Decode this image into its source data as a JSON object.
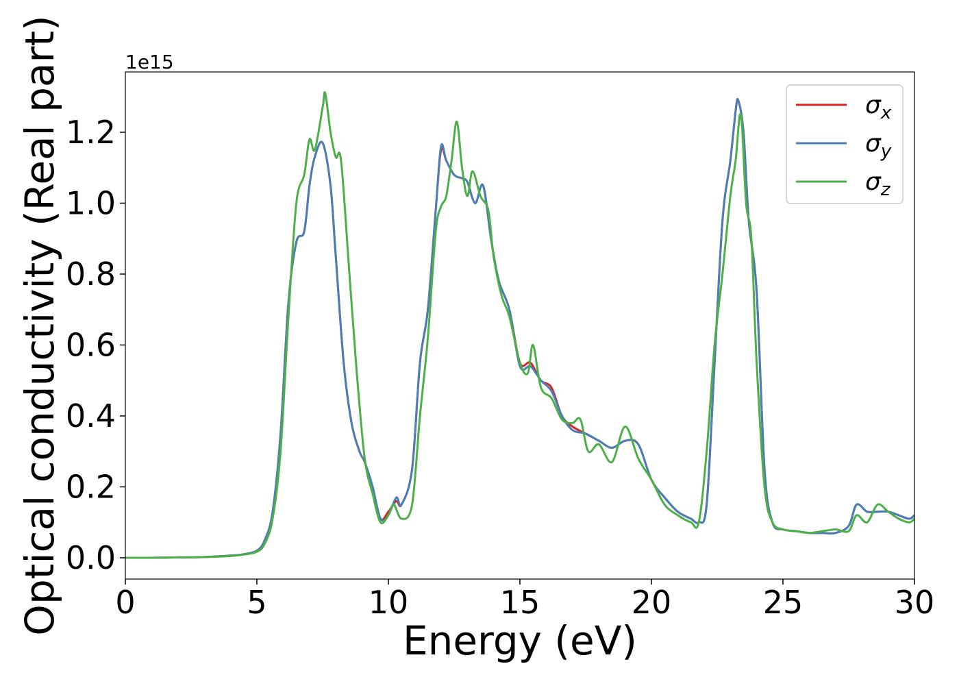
{
  "chart_data": {
    "type": "line",
    "title": "",
    "xlabel": "Energy (eV)",
    "ylabel": "Optical conductivity (Real part)",
    "y_offset_label": "1e15",
    "xlim": [
      0,
      30
    ],
    "ylim": [
      -0.06,
      1.37
    ],
    "xticks": [
      0,
      5,
      10,
      15,
      20,
      25,
      30
    ],
    "yticks": [
      0.0,
      0.2,
      0.4,
      0.6,
      0.8,
      1.0,
      1.2
    ],
    "xtick_labels": [
      "0",
      "5",
      "10",
      "15",
      "20",
      "25",
      "30"
    ],
    "ytick_labels": [
      "0.0",
      "0.2",
      "0.4",
      "0.6",
      "0.8",
      "1.0",
      "1.2"
    ],
    "grid": false,
    "legend_position": "top-right",
    "colors": {
      "sigma_x": "#d62728",
      "sigma_y": "#4a7fb5",
      "sigma_z": "#4daf4a"
    },
    "series": [
      {
        "key": "sigma_x",
        "name": "σ",
        "subscript": "x",
        "color": "#d62728",
        "x": [
          0,
          1,
          2,
          3,
          4,
          4.5,
          5,
          5.3,
          5.6,
          5.9,
          6.2,
          6.5,
          6.8,
          7.0,
          7.2,
          7.5,
          7.8,
          8.0,
          8.3,
          8.6,
          8.9,
          9.1,
          9.4,
          9.7,
          10.0,
          10.3,
          10.5,
          10.9,
          11.2,
          11.5,
          11.8,
          12.0,
          12.2,
          12.5,
          12.8,
          13.0,
          13.3,
          13.6,
          13.9,
          14.2,
          14.6,
          15.0,
          15.4,
          15.8,
          16.2,
          16.6,
          17.0,
          17.5,
          18.0,
          18.5,
          19.0,
          19.5,
          20.0,
          20.5,
          21.0,
          21.5,
          21.8,
          22.1,
          22.4,
          22.7,
          23.0,
          23.2,
          23.3,
          23.5,
          23.7,
          24.0,
          24.3,
          24.6,
          25.0,
          25.5,
          26.0,
          26.5,
          27.0,
          27.5,
          27.8,
          28.2,
          28.6,
          29.0,
          29.4,
          29.8,
          30.0
        ],
        "values": [
          0.0,
          0.0,
          0.001,
          0.002,
          0.006,
          0.01,
          0.02,
          0.05,
          0.13,
          0.35,
          0.72,
          0.89,
          0.92,
          1.05,
          1.13,
          1.17,
          1.05,
          0.85,
          0.55,
          0.38,
          0.3,
          0.27,
          0.2,
          0.11,
          0.13,
          0.16,
          0.15,
          0.25,
          0.55,
          0.7,
          0.98,
          1.15,
          1.12,
          1.08,
          1.07,
          1.06,
          1.0,
          1.05,
          0.9,
          0.78,
          0.7,
          0.55,
          0.55,
          0.5,
          0.48,
          0.4,
          0.37,
          0.35,
          0.33,
          0.31,
          0.33,
          0.32,
          0.22,
          0.17,
          0.13,
          0.11,
          0.1,
          0.15,
          0.55,
          0.95,
          1.12,
          1.26,
          1.29,
          1.2,
          0.95,
          0.75,
          0.25,
          0.1,
          0.08,
          0.075,
          0.07,
          0.07,
          0.07,
          0.09,
          0.15,
          0.13,
          0.13,
          0.13,
          0.12,
          0.11,
          0.12
        ]
      },
      {
        "key": "sigma_y",
        "name": "σ",
        "subscript": "y",
        "color": "#4a7fb5",
        "x": [
          0,
          1,
          2,
          3,
          4,
          4.5,
          5,
          5.3,
          5.6,
          5.9,
          6.2,
          6.5,
          6.8,
          7.0,
          7.2,
          7.5,
          7.8,
          8.0,
          8.3,
          8.6,
          8.9,
          9.1,
          9.4,
          9.7,
          10.0,
          10.3,
          10.5,
          10.9,
          11.2,
          11.5,
          11.8,
          12.0,
          12.2,
          12.5,
          12.8,
          13.0,
          13.3,
          13.6,
          13.9,
          14.2,
          14.6,
          15.0,
          15.4,
          15.8,
          16.2,
          16.6,
          17.0,
          17.5,
          18.0,
          18.5,
          19.0,
          19.5,
          20.0,
          20.5,
          21.0,
          21.5,
          21.8,
          22.1,
          22.4,
          22.7,
          23.0,
          23.2,
          23.3,
          23.5,
          23.7,
          24.0,
          24.3,
          24.6,
          25.0,
          25.5,
          26.0,
          26.5,
          27.0,
          27.5,
          27.8,
          28.2,
          28.6,
          29.0,
          29.4,
          29.8,
          30.0
        ],
        "values": [
          0.0,
          0.0,
          0.001,
          0.002,
          0.006,
          0.01,
          0.02,
          0.05,
          0.13,
          0.35,
          0.72,
          0.89,
          0.92,
          1.05,
          1.13,
          1.17,
          1.05,
          0.85,
          0.55,
          0.38,
          0.3,
          0.27,
          0.2,
          0.11,
          0.12,
          0.17,
          0.15,
          0.25,
          0.55,
          0.7,
          0.98,
          1.16,
          1.12,
          1.08,
          1.07,
          1.06,
          1.0,
          1.05,
          0.9,
          0.78,
          0.7,
          0.54,
          0.54,
          0.5,
          0.47,
          0.4,
          0.36,
          0.35,
          0.33,
          0.31,
          0.33,
          0.32,
          0.22,
          0.17,
          0.13,
          0.11,
          0.1,
          0.15,
          0.55,
          0.95,
          1.12,
          1.26,
          1.29,
          1.2,
          0.95,
          0.75,
          0.25,
          0.1,
          0.08,
          0.075,
          0.07,
          0.07,
          0.07,
          0.09,
          0.15,
          0.13,
          0.13,
          0.13,
          0.12,
          0.11,
          0.12
        ]
      },
      {
        "key": "sigma_z",
        "name": "σ",
        "subscript": "z",
        "color": "#4daf4a",
        "x": [
          0,
          1,
          2,
          3,
          4,
          4.5,
          5,
          5.3,
          5.6,
          5.9,
          6.2,
          6.5,
          6.8,
          7.0,
          7.2,
          7.5,
          7.6,
          7.8,
          8.0,
          8.2,
          8.5,
          8.8,
          9.1,
          9.4,
          9.7,
          10.0,
          10.2,
          10.5,
          10.9,
          11.2,
          11.5,
          11.8,
          12.0,
          12.2,
          12.4,
          12.6,
          12.8,
          13.0,
          13.2,
          13.5,
          13.8,
          14.0,
          14.3,
          14.6,
          15.0,
          15.3,
          15.5,
          15.8,
          16.2,
          16.6,
          17.0,
          17.3,
          17.6,
          18.0,
          18.5,
          19.0,
          19.5,
          20.0,
          20.5,
          21.0,
          21.5,
          21.8,
          22.1,
          22.4,
          22.7,
          23.0,
          23.2,
          23.4,
          23.6,
          23.8,
          24.0,
          24.3,
          24.6,
          25.0,
          25.5,
          26.0,
          26.5,
          27.0,
          27.5,
          27.8,
          28.2,
          28.6,
          29.0,
          29.4,
          29.8,
          30.0
        ],
        "values": [
          0.0,
          0.0,
          0.001,
          0.002,
          0.005,
          0.009,
          0.017,
          0.04,
          0.11,
          0.3,
          0.68,
          1.0,
          1.08,
          1.18,
          1.15,
          1.27,
          1.31,
          1.2,
          1.13,
          1.12,
          0.82,
          0.52,
          0.28,
          0.18,
          0.1,
          0.12,
          0.15,
          0.11,
          0.15,
          0.4,
          0.62,
          0.92,
          0.99,
          1.02,
          1.12,
          1.23,
          1.1,
          1.02,
          1.09,
          1.02,
          0.98,
          0.85,
          0.74,
          0.68,
          0.55,
          0.52,
          0.6,
          0.48,
          0.45,
          0.39,
          0.38,
          0.39,
          0.3,
          0.32,
          0.27,
          0.37,
          0.28,
          0.22,
          0.15,
          0.12,
          0.1,
          0.1,
          0.3,
          0.6,
          0.8,
          1.02,
          1.12,
          1.25,
          1.0,
          0.9,
          0.55,
          0.2,
          0.1,
          0.08,
          0.075,
          0.07,
          0.075,
          0.08,
          0.075,
          0.12,
          0.1,
          0.15,
          0.13,
          0.11,
          0.1,
          0.11
        ]
      }
    ]
  }
}
